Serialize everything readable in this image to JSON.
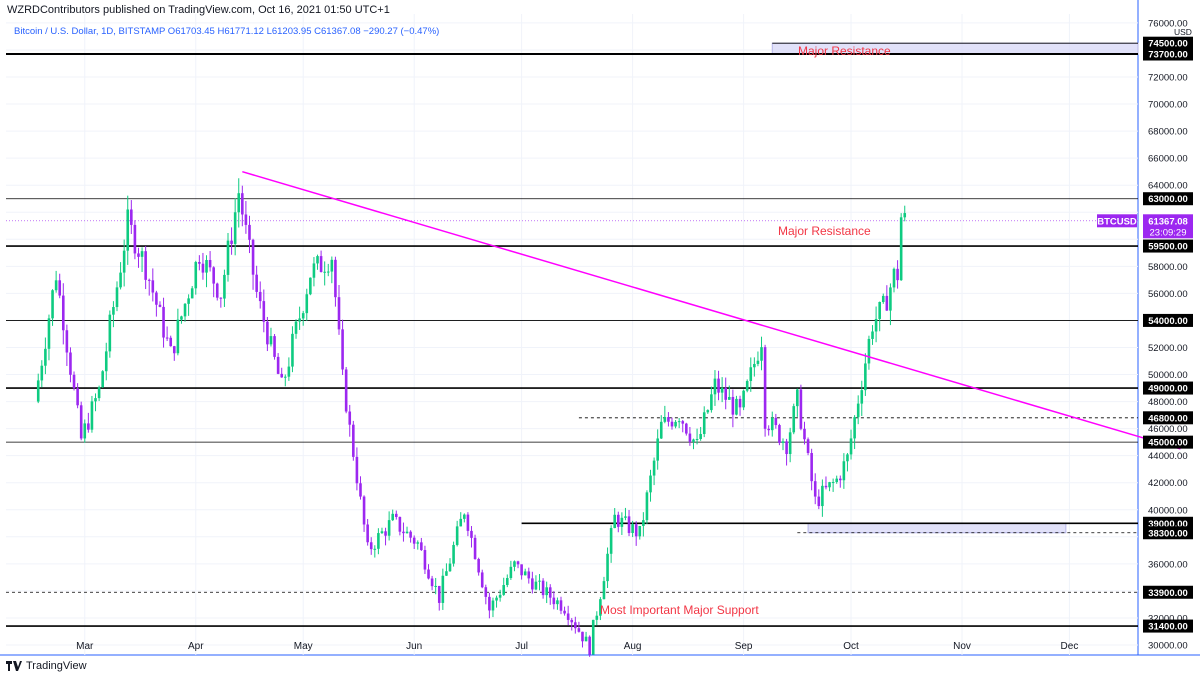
{
  "header": {
    "publisher_line": "WZRDContributors published on TradingView.com, Oct 16, 2021 01:50 UTC+1"
  },
  "legend": {
    "text": "Bitcoin / U.S. Dollar, 1D, BITSTAMP  O61703.45  H61771.12  L61203.95  C61367.08  −290.27 (−0.47%)"
  },
  "footer": {
    "brand": "TradingView"
  },
  "colors": {
    "up": "#0ecb81",
    "down": "#9c27f0",
    "trendline": "#ff00ff",
    "label_text": "#f23645",
    "level_line": "#000000",
    "zone_fill": "#d7d7f7",
    "price_tag": "#9c27f0"
  },
  "annotations": {
    "major_resistance_top": "Major Resistance",
    "major_resistance_mid": "Major Resistance",
    "major_support": "Most Important Major Support"
  },
  "chart_data": {
    "type": "candlestick",
    "symbol": "BTCUSD",
    "axis_unit": "USD",
    "x_month_labels": [
      "Mar",
      "Apr",
      "May",
      "Jun",
      "Jul",
      "Aug",
      "Sep",
      "Oct",
      "Nov",
      "Dec"
    ],
    "y_tick_labels": [
      "30000.00",
      "32000.00",
      "34000.00",
      "36000.00",
      "38000.00",
      "40000.00",
      "42000.00",
      "44000.00",
      "46000.00",
      "48000.00",
      "50000.00",
      "52000.00",
      "54000.00",
      "56000.00",
      "58000.00",
      "60000.00",
      "62000.00",
      "64000.00",
      "66000.00",
      "68000.00",
      "70000.00",
      "72000.00",
      "74000.00",
      "76000.00"
    ],
    "ylim": [
      29000,
      77000
    ],
    "levels": [
      {
        "price": 74500,
        "label": "74500.00",
        "style": "solid"
      },
      {
        "price": 73700,
        "label": "73700.00",
        "style": "solid"
      },
      {
        "price": 63000,
        "label": "63000.00",
        "style": "solid"
      },
      {
        "price": 59500,
        "label": "59500.00",
        "style": "solid"
      },
      {
        "price": 54000,
        "label": "54000.00",
        "style": "solid"
      },
      {
        "price": 49000,
        "label": "49000.00",
        "style": "solid"
      },
      {
        "price": 46800,
        "label": "46800.00",
        "style": "dashed"
      },
      {
        "price": 45000,
        "label": "45000.00",
        "style": "solid"
      },
      {
        "price": 39000,
        "label": "39000.00",
        "style": "solid"
      },
      {
        "price": 38300,
        "label": "38300.00",
        "style": "dashed"
      },
      {
        "price": 33900,
        "label": "33900.00",
        "style": "dashed"
      },
      {
        "price": 31400,
        "label": "31400.00",
        "style": "solid"
      }
    ],
    "zones": [
      {
        "from": 73700,
        "to": 74500,
        "start": "2021-09-09",
        "end": "2022-01-01"
      },
      {
        "from": 38300,
        "to": 39000,
        "start": "2021-09-19",
        "end": "2021-11-30"
      }
    ],
    "trendline": {
      "start": {
        "date": "2021-04-14",
        "price": 65000
      },
      "end": {
        "date": "2022-01-01",
        "price": 44500
      }
    },
    "last_price": {
      "symbol": "BTCUSD",
      "price": "61367.08",
      "countdown": "23:09:29",
      "value": 61367.08
    },
    "series": [
      {
        "date": "2021-02-15",
        "price": 48000
      },
      {
        "date": "2021-02-21",
        "price": 57500
      },
      {
        "date": "2021-02-28",
        "price": 45200
      },
      {
        "date": "2021-03-05",
        "price": 48800
      },
      {
        "date": "2021-03-13",
        "price": 61200
      },
      {
        "date": "2021-03-18",
        "price": 58000
      },
      {
        "date": "2021-03-25",
        "price": 51500
      },
      {
        "date": "2021-04-02",
        "price": 59000
      },
      {
        "date": "2021-04-08",
        "price": 56000
      },
      {
        "date": "2021-04-13",
        "price": 63500
      },
      {
        "date": "2021-04-18",
        "price": 56000
      },
      {
        "date": "2021-04-25",
        "price": 49000
      },
      {
        "date": "2021-05-03",
        "price": 57500
      },
      {
        "date": "2021-05-09",
        "price": 58800
      },
      {
        "date": "2021-05-12",
        "price": 49600
      },
      {
        "date": "2021-05-19",
        "price": 37000
      },
      {
        "date": "2021-05-26",
        "price": 39200
      },
      {
        "date": "2021-06-02",
        "price": 37500
      },
      {
        "date": "2021-06-08",
        "price": 33500
      },
      {
        "date": "2021-06-15",
        "price": 40000
      },
      {
        "date": "2021-06-22",
        "price": 32600
      },
      {
        "date": "2021-06-29",
        "price": 35900
      },
      {
        "date": "2021-07-06",
        "price": 34200
      },
      {
        "date": "2021-07-13",
        "price": 32800
      },
      {
        "date": "2021-07-20",
        "price": 29800
      },
      {
        "date": "2021-07-27",
        "price": 39400
      },
      {
        "date": "2021-08-03",
        "price": 38200
      },
      {
        "date": "2021-08-09",
        "price": 46200
      },
      {
        "date": "2021-08-14",
        "price": 47100
      },
      {
        "date": "2021-08-19",
        "price": 44700
      },
      {
        "date": "2021-08-24",
        "price": 49200
      },
      {
        "date": "2021-08-31",
        "price": 47100
      },
      {
        "date": "2021-09-06",
        "price": 52700
      },
      {
        "date": "2021-09-07",
        "price": 46800
      },
      {
        "date": "2021-09-13",
        "price": 44900
      },
      {
        "date": "2021-09-16",
        "price": 48100
      },
      {
        "date": "2021-09-21",
        "price": 40600
      },
      {
        "date": "2021-09-27",
        "price": 42200
      },
      {
        "date": "2021-09-30",
        "price": 43800
      },
      {
        "date": "2021-10-03",
        "price": 48200
      },
      {
        "date": "2021-10-07",
        "price": 53800
      },
      {
        "date": "2021-10-10",
        "price": 54900
      },
      {
        "date": "2021-10-13",
        "price": 57300
      },
      {
        "date": "2021-10-14",
        "price": 57400
      },
      {
        "date": "2021-10-15",
        "price": 61650
      },
      {
        "date": "2021-10-16",
        "price": 61367
      }
    ]
  }
}
